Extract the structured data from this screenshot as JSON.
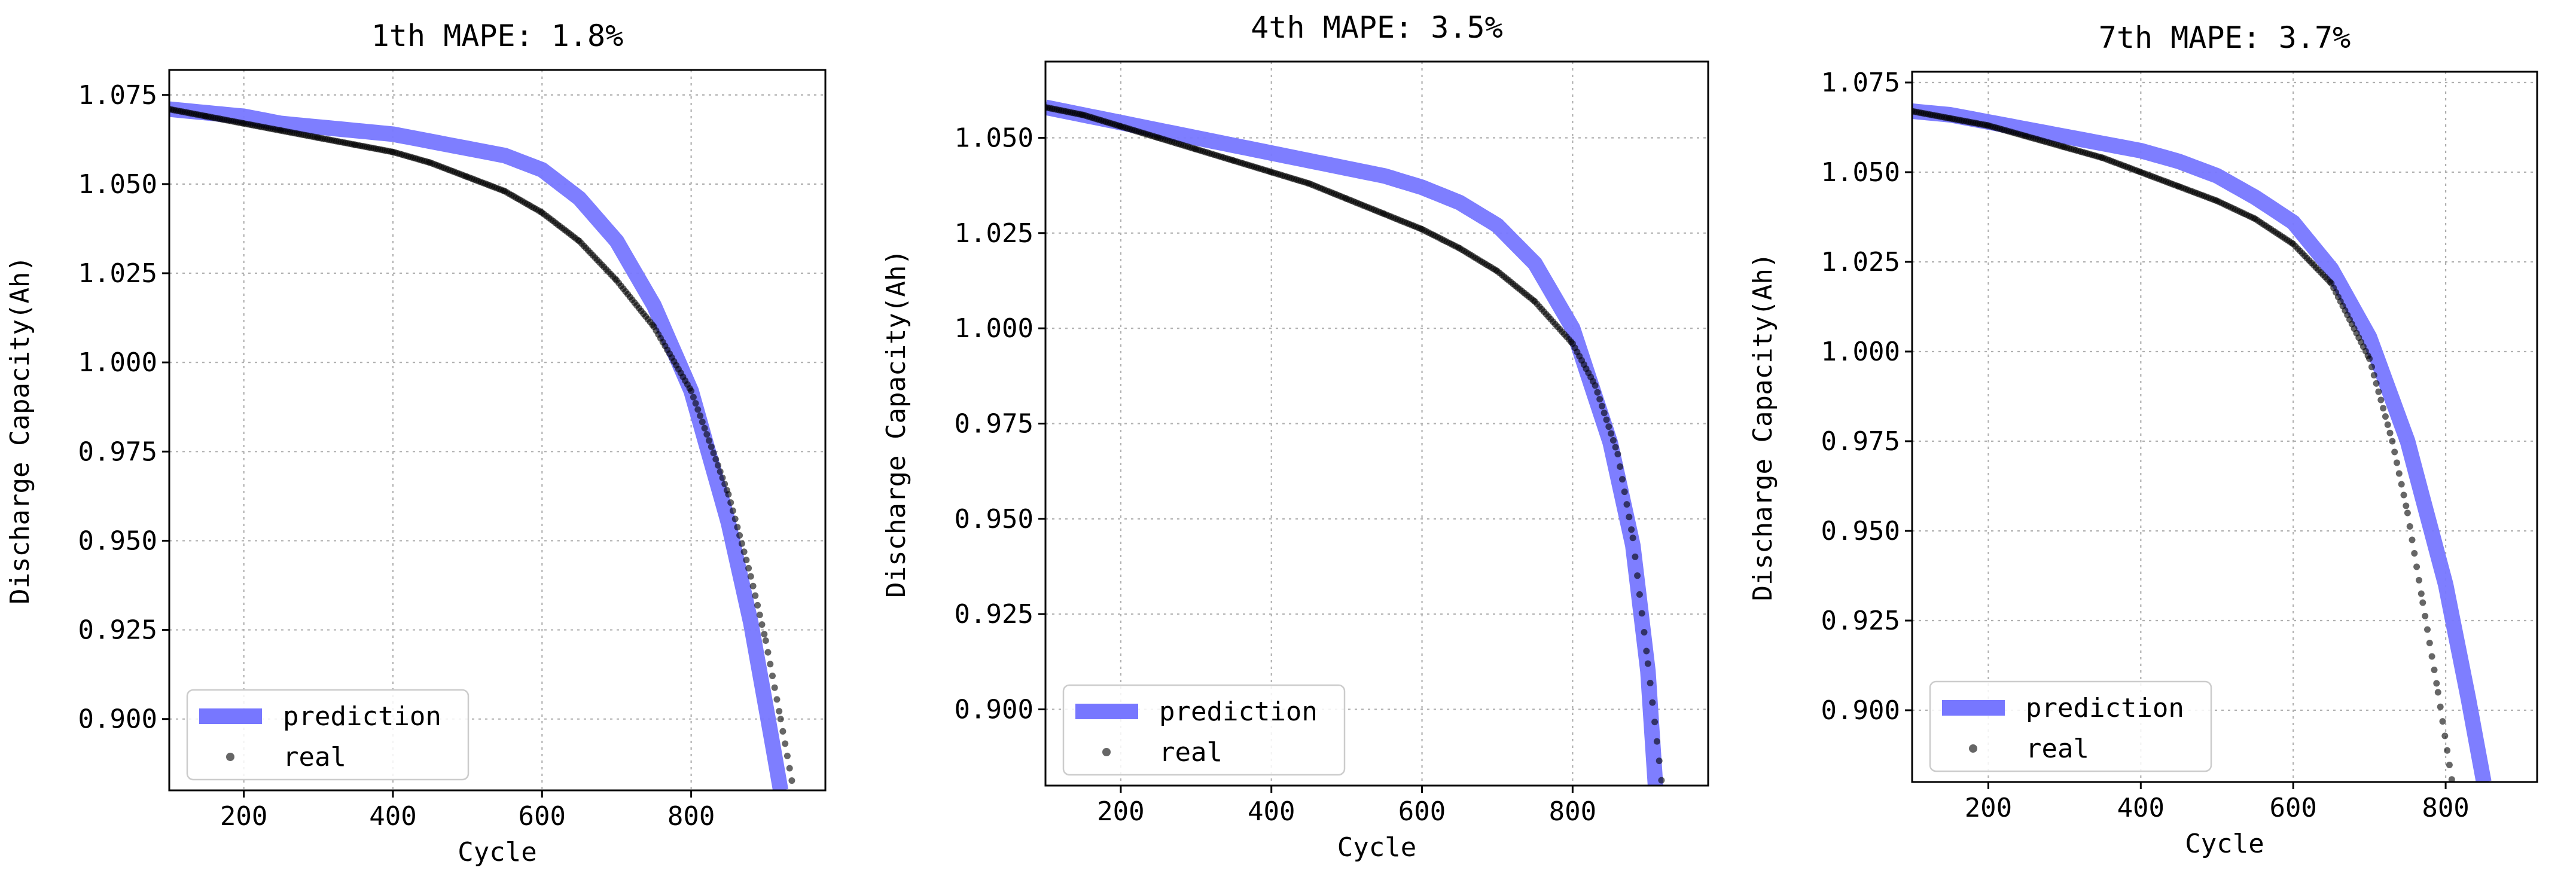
{
  "chart_data": [
    {
      "type": "line",
      "title": "1th    MAPE: 1.8%",
      "xlabel": "Cycle",
      "ylabel": "Discharge Capacity(Ah)",
      "xlim": [
        100,
        980
      ],
      "ylim": [
        0.88,
        1.082
      ],
      "xticks": [
        200,
        400,
        600,
        800
      ],
      "yticks": [
        0.9,
        0.925,
        0.95,
        0.975,
        1.0,
        1.025,
        1.05,
        1.075
      ],
      "grid": true,
      "legend": "bottom-left",
      "series": [
        {
          "name": "prediction",
          "style": "line",
          "color": "#7777ff",
          "x": [
            100,
            150,
            200,
            250,
            300,
            350,
            400,
            450,
            500,
            550,
            600,
            650,
            700,
            750,
            800,
            850,
            880,
            910,
            920
          ],
          "y": [
            1.071,
            1.07,
            1.069,
            1.067,
            1.066,
            1.065,
            1.064,
            1.062,
            1.06,
            1.058,
            1.054,
            1.046,
            1.034,
            1.016,
            0.992,
            0.955,
            0.927,
            0.892,
            0.88
          ]
        },
        {
          "name": "real",
          "style": "points",
          "color": "#000000",
          "x": [
            100,
            150,
            200,
            250,
            300,
            350,
            400,
            450,
            500,
            550,
            600,
            650,
            700,
            750,
            800,
            850,
            880,
            900,
            920,
            940
          ],
          "y": [
            1.071,
            1.069,
            1.067,
            1.065,
            1.063,
            1.061,
            1.059,
            1.056,
            1.052,
            1.048,
            1.042,
            1.034,
            1.023,
            1.01,
            0.992,
            0.963,
            0.94,
            0.922,
            0.9,
            0.877
          ]
        }
      ]
    },
    {
      "type": "line",
      "title": "4th    MAPE: 3.5%",
      "xlabel": "Cycle",
      "ylabel": "Discharge Capacity(Ah)",
      "xlim": [
        100,
        980
      ],
      "ylim": [
        0.88,
        1.07
      ],
      "xticks": [
        200,
        400,
        600,
        800
      ],
      "yticks": [
        0.9,
        0.925,
        0.95,
        0.975,
        1.0,
        1.025,
        1.05
      ],
      "grid": true,
      "legend": "bottom-left",
      "series": [
        {
          "name": "prediction",
          "style": "line",
          "color": "#7777ff",
          "x": [
            100,
            150,
            200,
            250,
            300,
            350,
            400,
            450,
            500,
            550,
            600,
            650,
            700,
            750,
            800,
            850,
            880,
            900,
            910
          ],
          "y": [
            1.058,
            1.056,
            1.054,
            1.052,
            1.05,
            1.048,
            1.046,
            1.044,
            1.042,
            1.04,
            1.037,
            1.033,
            1.027,
            1.017,
            1.0,
            0.97,
            0.943,
            0.91,
            0.88
          ]
        },
        {
          "name": "real",
          "style": "points",
          "color": "#000000",
          "x": [
            100,
            150,
            200,
            250,
            300,
            350,
            400,
            450,
            500,
            550,
            600,
            650,
            700,
            750,
            800,
            830,
            860,
            880,
            900,
            920
          ],
          "y": [
            1.058,
            1.056,
            1.053,
            1.05,
            1.047,
            1.044,
            1.041,
            1.038,
            1.034,
            1.03,
            1.026,
            1.021,
            1.015,
            1.007,
            0.996,
            0.985,
            0.967,
            0.945,
            0.912,
            0.878
          ]
        }
      ]
    },
    {
      "type": "line",
      "title": "7th    MAPE: 3.7%",
      "xlabel": "Cycle",
      "ylabel": "Discharge Capacity(Ah)",
      "xlim": [
        100,
        920
      ],
      "ylim": [
        0.88,
        1.078
      ],
      "xticks": [
        200,
        400,
        600,
        800
      ],
      "yticks": [
        0.9,
        0.925,
        0.95,
        0.975,
        1.0,
        1.025,
        1.05,
        1.075
      ],
      "grid": true,
      "legend": "bottom-left",
      "series": [
        {
          "name": "prediction",
          "style": "line",
          "color": "#7777ff",
          "x": [
            100,
            150,
            200,
            250,
            300,
            350,
            400,
            450,
            500,
            550,
            600,
            650,
            700,
            750,
            800,
            830,
            850
          ],
          "y": [
            1.067,
            1.066,
            1.064,
            1.062,
            1.06,
            1.058,
            1.056,
            1.053,
            1.049,
            1.043,
            1.036,
            1.023,
            1.004,
            0.975,
            0.935,
            0.903,
            0.88
          ]
        },
        {
          "name": "real",
          "style": "points",
          "color": "#000000",
          "x": [
            100,
            150,
            200,
            250,
            300,
            350,
            400,
            450,
            500,
            550,
            600,
            650,
            700,
            730,
            750,
            770,
            790,
            810
          ],
          "y": [
            1.067,
            1.065,
            1.063,
            1.06,
            1.057,
            1.054,
            1.05,
            1.046,
            1.042,
            1.037,
            1.03,
            1.019,
            0.998,
            0.975,
            0.955,
            0.93,
            0.905,
            0.878
          ]
        }
      ]
    }
  ]
}
